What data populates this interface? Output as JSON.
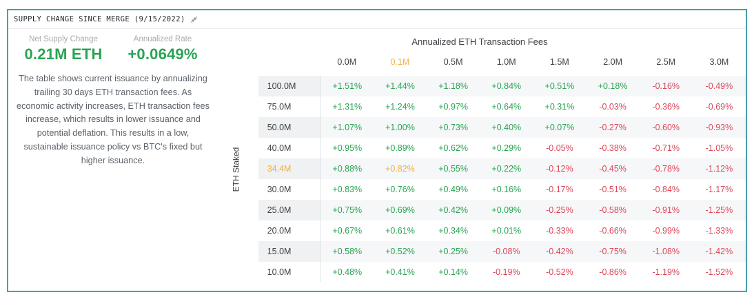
{
  "panel": {
    "title": "SUPPLY CHANGE SINCE MERGE (9/15/2022)"
  },
  "stats": [
    {
      "label": "Net Supply Change",
      "value": "0.21M ETH"
    },
    {
      "label": "Annualized Rate",
      "value": "+0.0649%"
    }
  ],
  "description": "The table shows current issuance by annualizing trailing 30 days ETH transaction fees. As economic activity increases, ETH transaction fees increase, which results in lower issuance and potential deflation. This results in a low, sustainable issuance policy vs BTC's fixed but higher issuance.",
  "chart_data": {
    "type": "table",
    "title": "Annualized ETH Transaction Fees",
    "row_axis_label": "ETH Staked",
    "col_headers": [
      "0.0M",
      "0.1M",
      "0.5M",
      "1.0M",
      "1.5M",
      "2.0M",
      "2.5M",
      "3.0M"
    ],
    "rows": [
      {
        "label": "100.0M",
        "values": [
          "+1.51%",
          "+1.44%",
          "+1.18%",
          "+0.84%",
          "+0.51%",
          "+0.18%",
          "-0.16%",
          "-0.49%"
        ]
      },
      {
        "label": "75.0M",
        "values": [
          "+1.31%",
          "+1.24%",
          "+0.97%",
          "+0.64%",
          "+0.31%",
          "-0.03%",
          "-0.36%",
          "-0.69%"
        ]
      },
      {
        "label": "50.0M",
        "values": [
          "+1.07%",
          "+1.00%",
          "+0.73%",
          "+0.40%",
          "+0.07%",
          "-0.27%",
          "-0.60%",
          "-0.93%"
        ]
      },
      {
        "label": "40.0M",
        "values": [
          "+0.95%",
          "+0.89%",
          "+0.62%",
          "+0.29%",
          "-0.05%",
          "-0.38%",
          "-0.71%",
          "-1.05%"
        ]
      },
      {
        "label": "34.4M",
        "values": [
          "+0.88%",
          "+0.82%",
          "+0.55%",
          "+0.22%",
          "-0.12%",
          "-0.45%",
          "-0.78%",
          "-1.12%"
        ]
      },
      {
        "label": "30.0M",
        "values": [
          "+0.83%",
          "+0.76%",
          "+0.49%",
          "+0.16%",
          "-0.17%",
          "-0.51%",
          "-0.84%",
          "-1.17%"
        ]
      },
      {
        "label": "25.0M",
        "values": [
          "+0.75%",
          "+0.69%",
          "+0.42%",
          "+0.09%",
          "-0.25%",
          "-0.58%",
          "-0.91%",
          "-1.25%"
        ]
      },
      {
        "label": "20.0M",
        "values": [
          "+0.67%",
          "+0.61%",
          "+0.34%",
          "+0.01%",
          "-0.33%",
          "-0.66%",
          "-0.99%",
          "-1.33%"
        ]
      },
      {
        "label": "15.0M",
        "values": [
          "+0.58%",
          "+0.52%",
          "+0.25%",
          "-0.08%",
          "-0.42%",
          "-0.75%",
          "-1.08%",
          "-1.42%"
        ]
      },
      {
        "label": "10.0M",
        "values": [
          "+0.48%",
          "+0.41%",
          "+0.14%",
          "-0.19%",
          "-0.52%",
          "-0.86%",
          "-1.19%",
          "-1.52%"
        ]
      }
    ],
    "highlighted_col": "0.1M",
    "highlighted_row": "34.4M",
    "colors": {
      "positive": "#28a453",
      "negative": "#de4558",
      "highlight": "#efb13e",
      "panel_border": "#46a0ae"
    }
  }
}
